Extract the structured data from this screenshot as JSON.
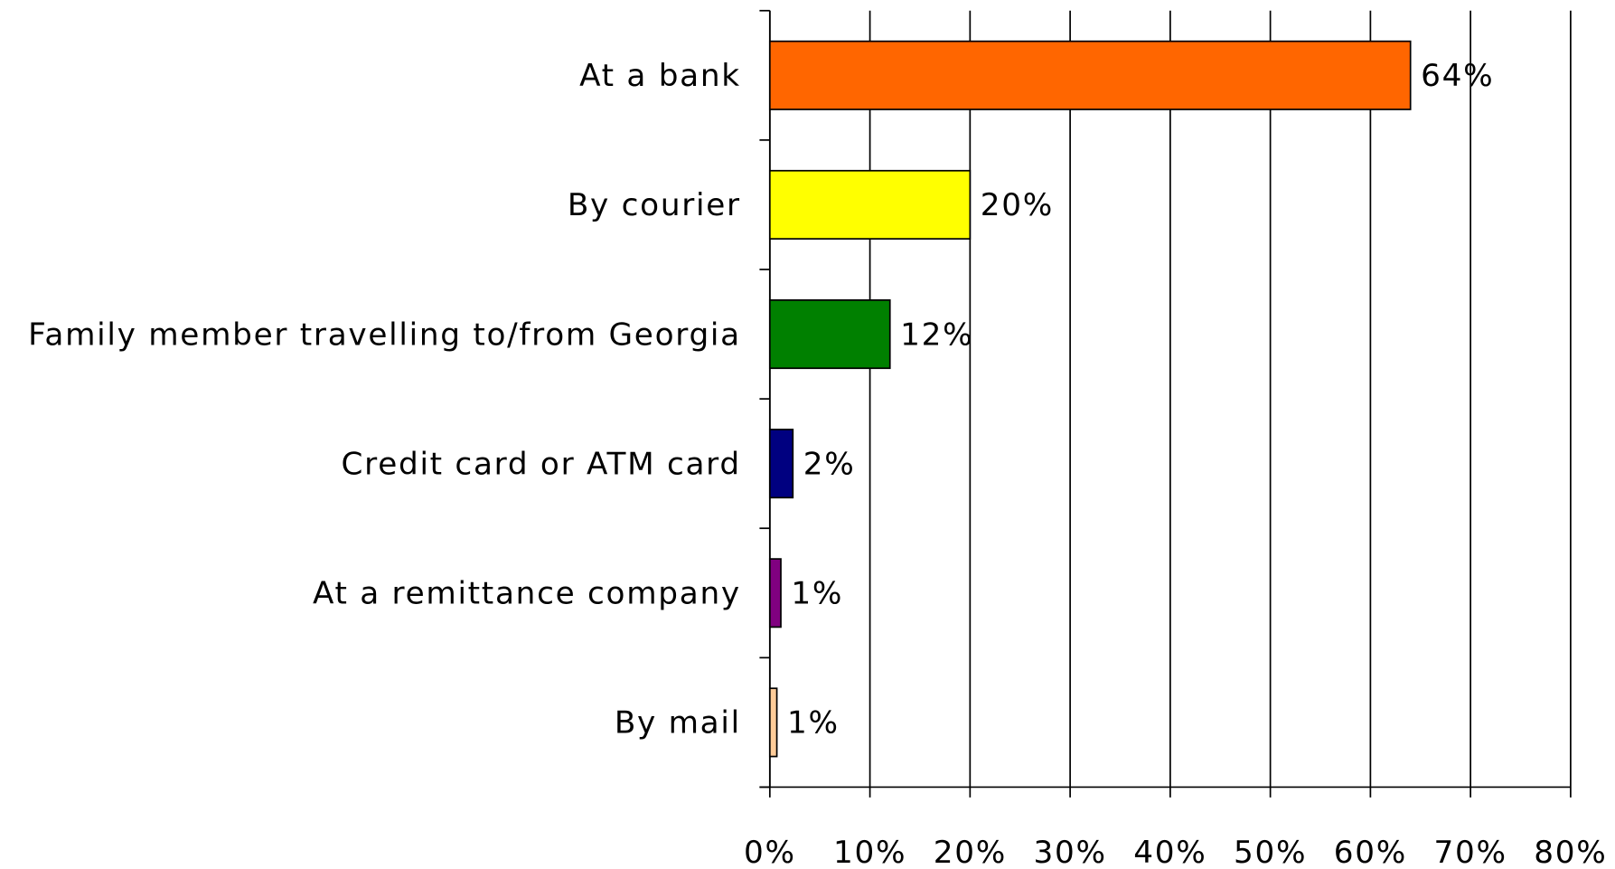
{
  "chart_data": {
    "type": "hbar",
    "categories": [
      "At a bank",
      "By courier",
      "Family member travelling to/from Georgia",
      "Credit card or ATM card",
      "At a remittance company",
      "By mail"
    ],
    "values": [
      64,
      20,
      12,
      2.3,
      1.1,
      0.7
    ],
    "value_labels": [
      "64%",
      "20%",
      "12%",
      "2%",
      "1%",
      "1%"
    ],
    "colors": [
      "#ff6600",
      "#ffff00",
      "#008000",
      "#000080",
      "#800080",
      "#ffcc99"
    ],
    "xlim": [
      0,
      80
    ],
    "xticks": [
      {
        "value": 0,
        "label": "0%"
      },
      {
        "value": 10,
        "label": "10%"
      },
      {
        "value": 20,
        "label": "20%"
      },
      {
        "value": 30,
        "label": "30%"
      },
      {
        "value": 40,
        "label": "40%"
      },
      {
        "value": 50,
        "label": "50%"
      },
      {
        "value": 60,
        "label": "60%"
      },
      {
        "value": 70,
        "label": "70%"
      },
      {
        "value": 80,
        "label": "80%"
      }
    ],
    "grid": true
  }
}
